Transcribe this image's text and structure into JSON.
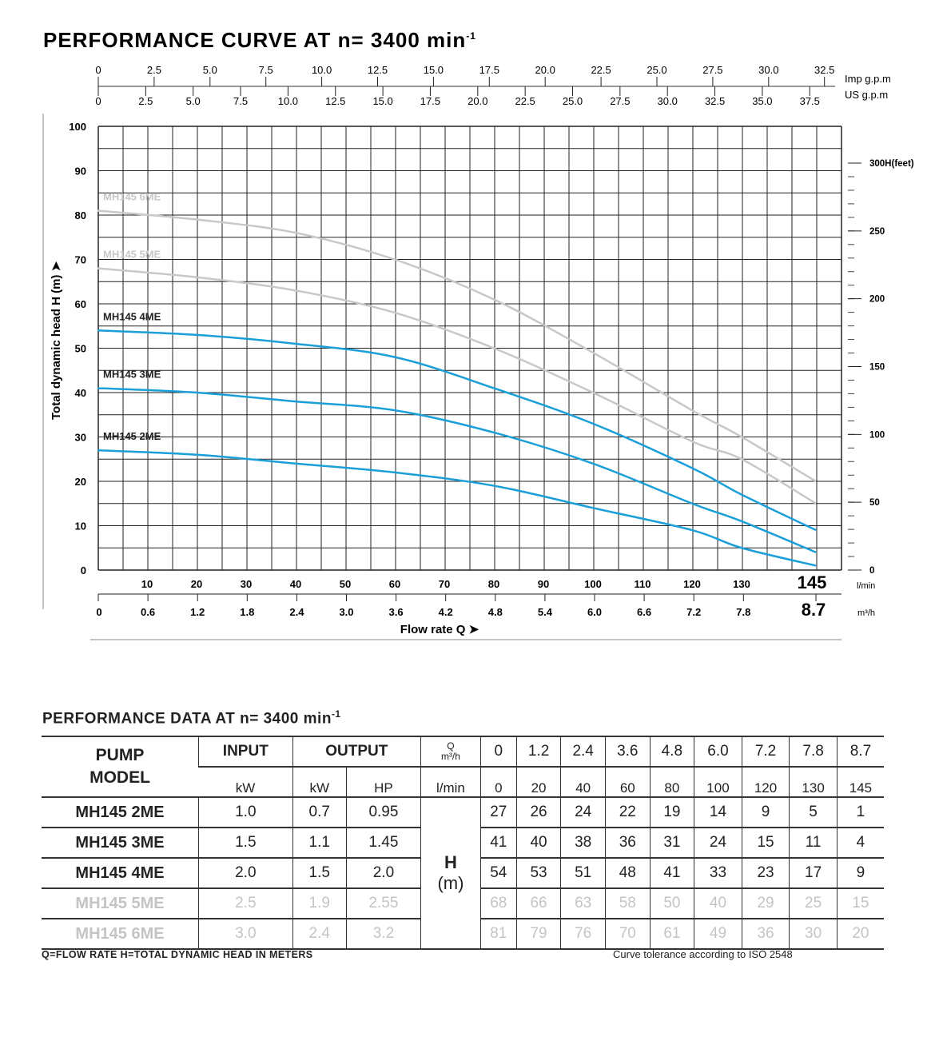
{
  "title": "PERFORMANCE CURVE AT n= 3400 min",
  "title_sup": "-1",
  "chart_data": {
    "type": "line",
    "xlabel": "Flow rate Q",
    "ylabel": "Total dynamic head H (m)",
    "x_unit": "l/min",
    "x2_unit": "m³/h",
    "xlim": [
      0,
      150
    ],
    "ylim": [
      0,
      100
    ],
    "x_ticks": [
      10,
      20,
      30,
      40,
      50,
      60,
      70,
      80,
      90,
      100,
      110,
      120,
      130
    ],
    "x_end_label": "145",
    "x2_ticks": [
      "0",
      "0.6",
      "1.2",
      "1.8",
      "2.4",
      "3.0",
      "3.6",
      "4.2",
      "4.8",
      "5.4",
      "6.0",
      "6.6",
      "7.2",
      "7.8"
    ],
    "x2_end_label": "8.7",
    "y_ticks": [
      0,
      10,
      20,
      30,
      40,
      50,
      60,
      70,
      80,
      90,
      100
    ],
    "y2_ticks": [
      "0",
      "50",
      "100",
      "150",
      "200",
      "250",
      "300H(feet)"
    ],
    "imp_gpm_ticks": [
      "0",
      "2.5",
      "5.0",
      "7.5",
      "10.0",
      "12.5",
      "15.0",
      "17.5",
      "20.0",
      "22.5",
      "25.0",
      "27.5",
      "30.0",
      "32.5"
    ],
    "imp_label": "Imp g.p.m",
    "us_gpm_ticks": [
      "0",
      "2.5",
      "5.0",
      "7.5",
      "10.0",
      "12.5",
      "15.0",
      "17.5",
      "20.0",
      "22.5",
      "25.0",
      "27.5",
      "30.0",
      "32.5",
      "35.0",
      "37.5"
    ],
    "us_label": "US g.p.m",
    "grid": true,
    "x": [
      0,
      20,
      40,
      60,
      80,
      100,
      120,
      130,
      145
    ],
    "series": [
      {
        "name": "MH145 2ME",
        "color": "#1a9fd9",
        "values": [
          27,
          26,
          24,
          22,
          19,
          14,
          9,
          5,
          1
        ]
      },
      {
        "name": "MH145 3ME",
        "color": "#1a9fd9",
        "values": [
          41,
          40,
          38,
          36,
          31,
          24,
          15,
          11,
          4
        ]
      },
      {
        "name": "MH145 4ME",
        "color": "#1a9fd9",
        "values": [
          54,
          53,
          51,
          48,
          41,
          33,
          23,
          17,
          9
        ]
      },
      {
        "name": "MH145 5ME",
        "color": "#c8c8c8",
        "values": [
          68,
          66,
          63,
          58,
          50,
          40,
          29,
          25,
          15
        ]
      },
      {
        "name": "MH145 6ME",
        "color": "#c8c8c8",
        "values": [
          81,
          79,
          76,
          70,
          61,
          49,
          36,
          30,
          20
        ]
      }
    ]
  },
  "table": {
    "title": "PERFORMANCE DATA AT n= 3400 min",
    "title_sup": "-1",
    "pump_model": "PUMP MODEL",
    "input": "INPUT",
    "output": "OUTPUT",
    "q": "Q",
    "q_unit": "m³/h",
    "kw": "kW",
    "hp": "HP",
    "lmin": "l/min",
    "h": "H",
    "h_unit": "(m)",
    "q_m3h": [
      "0",
      "1.2",
      "2.4",
      "3.6",
      "4.8",
      "6.0",
      "7.2",
      "7.8",
      "8.7"
    ],
    "q_lmin": [
      "0",
      "20",
      "40",
      "60",
      "80",
      "100",
      "120",
      "130",
      "145"
    ],
    "rows": [
      {
        "model": "MH145 2ME",
        "in_kw": "1.0",
        "out_kw": "0.7",
        "hp": "0.95",
        "h": [
          "27",
          "26",
          "24",
          "22",
          "19",
          "14",
          "9",
          "5",
          "1"
        ],
        "light": false
      },
      {
        "model": "MH145 3ME",
        "in_kw": "1.5",
        "out_kw": "1.1",
        "hp": "1.45",
        "h": [
          "41",
          "40",
          "38",
          "36",
          "31",
          "24",
          "15",
          "11",
          "4"
        ],
        "light": false
      },
      {
        "model": "MH145 4ME",
        "in_kw": "2.0",
        "out_kw": "1.5",
        "hp": "2.0",
        "h": [
          "54",
          "53",
          "51",
          "48",
          "41",
          "33",
          "23",
          "17",
          "9"
        ],
        "light": false
      },
      {
        "model": "MH145 5ME",
        "in_kw": "2.5",
        "out_kw": "1.9",
        "hp": "2.55",
        "h": [
          "68",
          "66",
          "63",
          "58",
          "50",
          "40",
          "29",
          "25",
          "15"
        ],
        "light": true
      },
      {
        "model": "MH145 6ME",
        "in_kw": "3.0",
        "out_kw": "2.4",
        "hp": "3.2",
        "h": [
          "81",
          "79",
          "76",
          "70",
          "61",
          "49",
          "36",
          "30",
          "20"
        ],
        "light": true
      }
    ]
  },
  "footer_left": "Q=FLOW RATE  H=TOTAL DYNAMIC HEAD IN METERS",
  "footer_right": "Curve tolerance according to ISO 2548"
}
